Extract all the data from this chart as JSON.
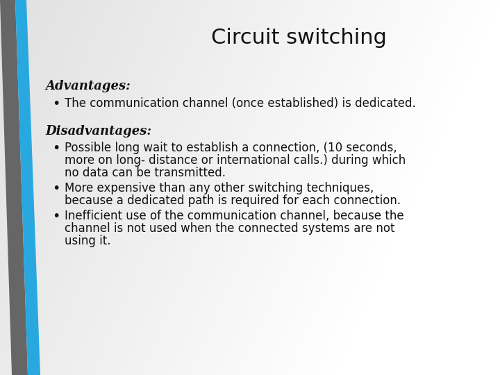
{
  "title": "Circuit switching",
  "title_fontsize": 22,
  "title_font": "sans-serif",
  "advantages_header": "Advantages:",
  "advantages_bullets": [
    "The communication channel (once established) is dedicated."
  ],
  "disadvantages_header": "Disadvantages:",
  "disadvantages_bullets": [
    "Possible long wait to establish a connection, (10 seconds,\nmore on long- distance or international calls.) during which\nno data can be transmitted.",
    "More expensive than any other switching techniques,\nbecause a dedicated path is required for each connection.",
    "Inefficient use of the communication channel, because the\nchannel is not used when the connected systems are not\nusing it."
  ],
  "header_fontsize": 13,
  "body_fontsize": 12,
  "text_color": "#111111",
  "accent_blue": "#29a8e0",
  "accent_gray": "#666666"
}
